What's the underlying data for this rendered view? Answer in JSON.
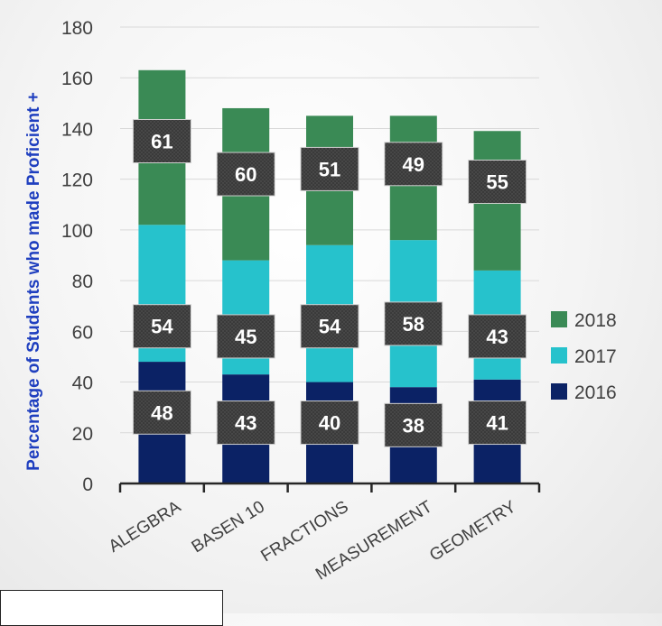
{
  "chart_data": {
    "type": "bar",
    "stacked": true,
    "categories": [
      "ALEGBRA",
      "BASEN 10",
      "FRACTIONS",
      "MEASUREMENT",
      "GEOMETRY"
    ],
    "series": [
      {
        "name": "2016",
        "color": "#0b2265",
        "values": [
          48,
          43,
          40,
          38,
          41
        ]
      },
      {
        "name": "2017",
        "color": "#26c2cc",
        "values": [
          54,
          45,
          54,
          58,
          43
        ]
      },
      {
        "name": "2018",
        "color": "#3a8a55",
        "values": [
          61,
          60,
          51,
          49,
          55
        ]
      }
    ],
    "ylabel": "Percentage of Students who made Proficient +",
    "ylim": [
      0,
      180
    ],
    "yticks": [
      0,
      20,
      40,
      60,
      80,
      100,
      120,
      140,
      160,
      180
    ],
    "grid": true,
    "legend": "right",
    "data_labels": true
  }
}
